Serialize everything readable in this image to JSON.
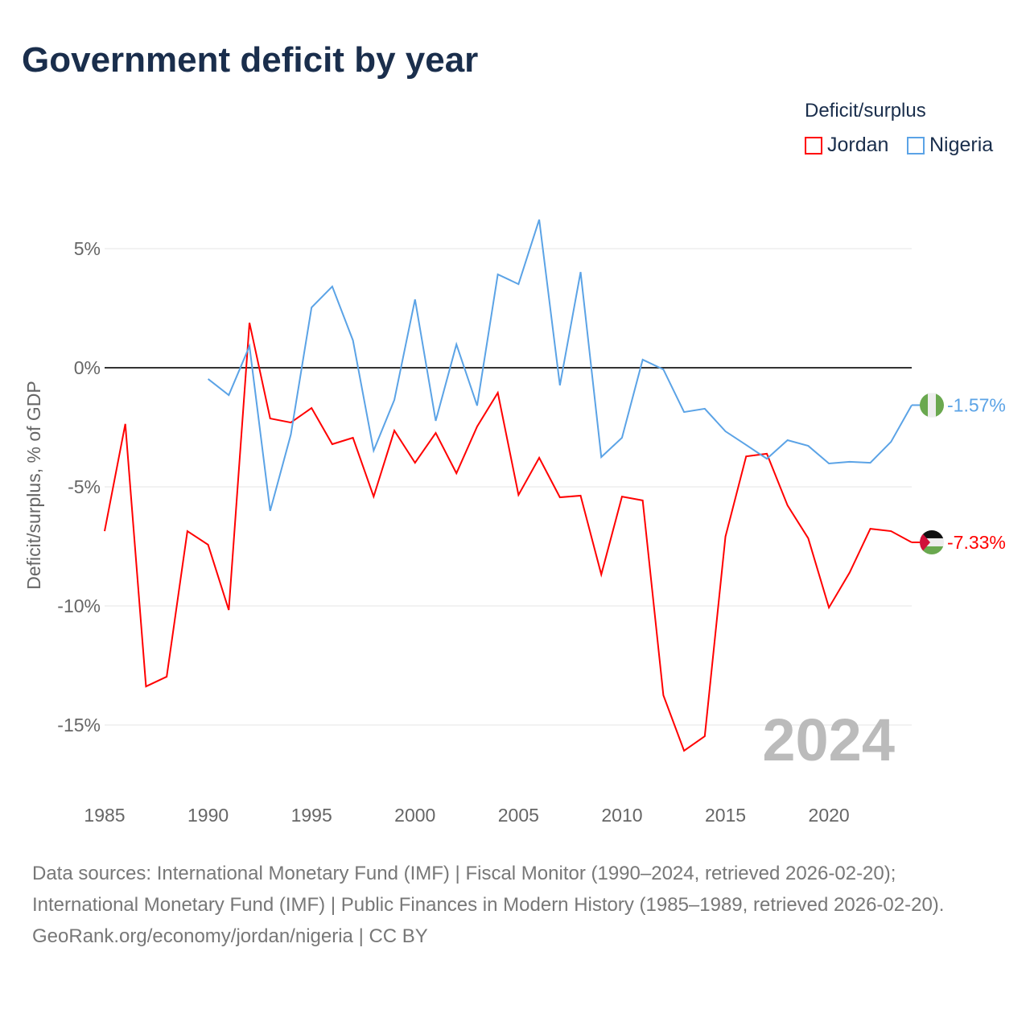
{
  "title": "Government deficit by year",
  "legend": {
    "title": "Deficit/surplus",
    "items": [
      {
        "name": "Jordan",
        "color": "#ff0000"
      },
      {
        "name": "Nigeria",
        "color": "#5ba3e6"
      }
    ]
  },
  "watermark_year": "2024",
  "footer": {
    "sources": "Data sources: International Monetary Fund (IMF) | Fiscal Monitor (1990–2024, retrieved 2026-02-20); International Monetary Fund (IMF) | Public Finances in Modern History (1985–1989, retrieved 2026-02-20).",
    "credit": "GeoRank.org/economy/jordan/nigeria | CC BY"
  },
  "chart_data": {
    "type": "line",
    "title": "Government deficit by year",
    "ylabel": "Deficit/surplus, % of GDP",
    "xlim": [
      1985,
      2024
    ],
    "ylim": [
      -17,
      7
    ],
    "xticks": [
      1985,
      1990,
      1995,
      2000,
      2005,
      2010,
      2015,
      2020
    ],
    "yticks": [
      {
        "v": 5,
        "label": "5%"
      },
      {
        "v": 0,
        "label": "0%"
      },
      {
        "v": -5,
        "label": "-5%"
      },
      {
        "v": -10,
        "label": "-10%"
      },
      {
        "v": -15,
        "label": "-15%"
      }
    ],
    "series": [
      {
        "name": "Jordan",
        "color": "#ff0000",
        "end_label": "-7.33%",
        "start": 1985,
        "values": [
          -6.86,
          -2.36,
          -13.38,
          -12.97,
          -6.86,
          -7.43,
          -10.17,
          1.89,
          -2.13,
          -2.3,
          -1.69,
          -3.21,
          -2.94,
          -5.41,
          -2.64,
          -3.99,
          -2.74,
          -4.43,
          -2.47,
          -1.05,
          -5.34,
          -3.78,
          -5.44,
          -5.37,
          -8.68,
          -5.41,
          -5.57,
          -13.75,
          -16.08,
          -15.47,
          -7.09,
          -3.72,
          -3.61,
          -5.78,
          -7.16,
          -10.07,
          -8.6,
          -6.76,
          -6.86,
          -7.33
        ]
      },
      {
        "name": "Nigeria",
        "color": "#5ba3e6",
        "end_label": "-1.57%",
        "start": 1990,
        "values": [
          -0.47,
          -1.15,
          0.91,
          -6.01,
          -2.8,
          2.53,
          3.41,
          1.15,
          -3.48,
          -1.35,
          2.87,
          -2.23,
          0.98,
          -1.59,
          3.92,
          3.51,
          6.22,
          -0.74,
          4.02,
          -3.75,
          -2.94,
          0.34,
          -0.07,
          -1.86,
          -1.72,
          -2.67,
          -3.24,
          -3.82,
          -3.04,
          -3.28,
          -4.02,
          -3.95,
          -3.99,
          -3.11,
          -1.57
        ]
      }
    ]
  }
}
